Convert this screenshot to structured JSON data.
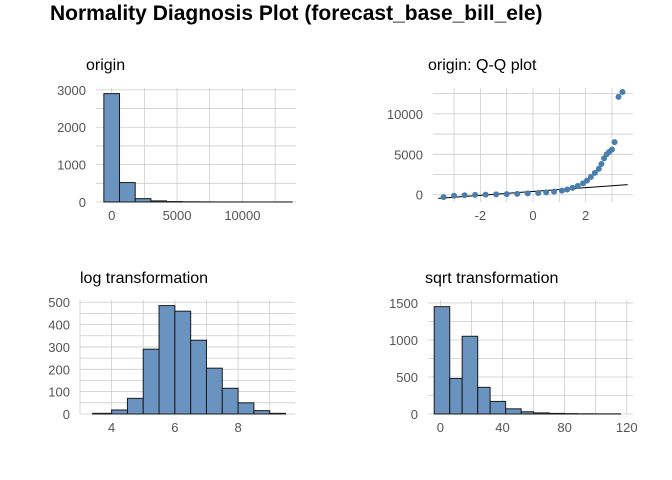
{
  "title": "Normality Diagnosis Plot (forecast_base_bill_ele)",
  "colors": {
    "fill": "#6a93bf",
    "stroke": "#1a1a1a",
    "point": "#4a7fad",
    "grid": "#cccccc",
    "tick_text": "#555555"
  },
  "chart_data": [
    {
      "type": "bar",
      "title": "origin",
      "bin_edges": [
        -600,
        600,
        1800,
        3000,
        4200,
        5400,
        6600,
        7800,
        9000,
        10200,
        11400,
        12600,
        13800
      ],
      "values": [
        2900,
        520,
        90,
        30,
        12,
        6,
        4,
        2,
        2,
        1,
        1,
        2
      ],
      "xlim": [
        -1200,
        14100
      ],
      "ylim": [
        0,
        3050
      ],
      "xticks": [
        0,
        5000,
        10000
      ],
      "yticks": [
        0,
        1000,
        2000,
        3000
      ],
      "grid": true
    },
    {
      "type": "scatter",
      "title": "origin: Q-Q plot",
      "sample_quantiles": [
        -300,
        -120,
        -60,
        -20,
        10,
        40,
        70,
        110,
        160,
        220,
        290,
        380,
        500,
        650,
        850,
        1100,
        1400,
        1750,
        2200,
        2700,
        3200,
        3800,
        4500,
        5000,
        5300,
        5600,
        6500,
        12100,
        12700
      ],
      "theoretical_quantiles": [
        -3.4,
        -3.0,
        -2.6,
        -2.2,
        -1.8,
        -1.4,
        -1.0,
        -0.6,
        -0.2,
        0.2,
        0.5,
        0.8,
        1.1,
        1.3,
        1.5,
        1.7,
        1.9,
        2.05,
        2.2,
        2.35,
        2.5,
        2.6,
        2.7,
        2.8,
        2.9,
        3.0,
        3.1,
        3.25,
        3.4
      ],
      "reference_line": [
        [
          -3.6,
          -450
        ],
        [
          3.6,
          1250
        ]
      ],
      "xlim": [
        -3.8,
        3.8
      ],
      "ylim": [
        -900,
        13200
      ],
      "xticks": [
        -2,
        0,
        2
      ],
      "yticks": [
        0,
        5000,
        10000
      ],
      "grid": true
    },
    {
      "type": "bar",
      "title": "log transformation",
      "bin_edges": [
        3.4,
        4.0,
        4.5,
        5.0,
        5.5,
        6.0,
        6.5,
        7.0,
        7.5,
        8.0,
        8.5,
        9.0,
        9.5
      ],
      "values": [
        3,
        18,
        70,
        290,
        485,
        460,
        330,
        205,
        115,
        50,
        15,
        3
      ],
      "xlim": [
        3.0,
        9.8
      ],
      "ylim": [
        0,
        510
      ],
      "xticks": [
        4,
        6,
        8
      ],
      "yticks": [
        0,
        100,
        200,
        300,
        400,
        500
      ],
      "grid": true
    },
    {
      "type": "bar",
      "title": "sqrt transformation",
      "bin_edges": [
        -4,
        6,
        14,
        24,
        32,
        42,
        52,
        60,
        70,
        80,
        88,
        98,
        116
      ],
      "values": [
        1450,
        480,
        1050,
        360,
        170,
        70,
        30,
        15,
        8,
        5,
        3,
        2
      ],
      "xlim": [
        -8,
        124
      ],
      "ylim": [
        0,
        1540
      ],
      "xticks": [
        0,
        40,
        80,
        120
      ],
      "yticks": [
        0,
        500,
        1000,
        1500
      ],
      "grid": true
    }
  ]
}
